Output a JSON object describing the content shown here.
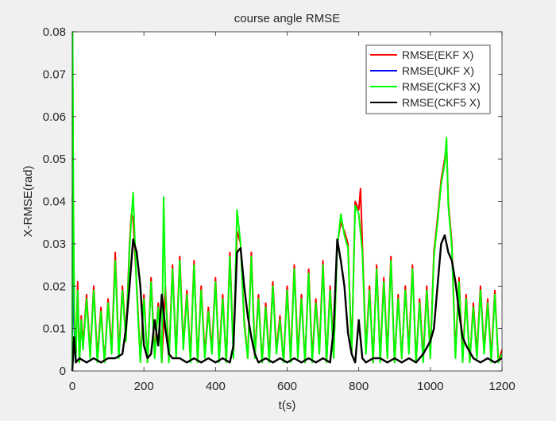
{
  "chart_data": {
    "type": "line",
    "title": "course angle RMSE",
    "xlabel": "t(s)",
    "ylabel": "X-RMSE(rad)",
    "xlim": [
      0,
      1200
    ],
    "ylim": [
      0,
      0.08
    ],
    "xticks": [
      0,
      200,
      400,
      600,
      800,
      1000,
      1200
    ],
    "yticks": [
      0,
      0.01,
      0.02,
      0.03,
      0.04,
      0.05,
      0.06,
      0.07,
      0.08
    ],
    "xtick_labels": [
      "0",
      "200",
      "400",
      "600",
      "800",
      "1000",
      "1200"
    ],
    "ytick_labels": [
      "0",
      "0.01",
      "0.02",
      "0.03",
      "0.04",
      "0.05",
      "0.06",
      "0.07",
      "0.08"
    ],
    "grid": false,
    "legend_position": "top-right",
    "series": [
      {
        "name": "RMSE(EKF X)",
        "color": "#ff0000",
        "x": [
          0,
          2,
          6,
          10,
          15,
          20,
          25,
          30,
          40,
          50,
          60,
          70,
          80,
          90,
          100,
          110,
          120,
          130,
          140,
          150,
          160,
          165,
          170,
          180,
          190,
          200,
          210,
          220,
          230,
          240,
          250,
          260,
          270,
          280,
          290,
          300,
          310,
          320,
          330,
          340,
          350,
          360,
          370,
          380,
          390,
          400,
          410,
          420,
          430,
          440,
          450,
          460,
          470,
          480,
          490,
          500,
          510,
          520,
          530,
          540,
          550,
          560,
          570,
          580,
          590,
          600,
          610,
          620,
          630,
          640,
          650,
          660,
          670,
          680,
          690,
          700,
          710,
          720,
          730,
          740,
          750,
          760,
          770,
          780,
          790,
          800,
          805,
          810,
          820,
          830,
          840,
          850,
          860,
          870,
          880,
          890,
          900,
          910,
          920,
          930,
          940,
          950,
          960,
          970,
          980,
          990,
          1000,
          1010,
          1020,
          1030,
          1040,
          1045,
          1050,
          1060,
          1070,
          1080,
          1090,
          1100,
          1110,
          1120,
          1130,
          1140,
          1150,
          1160,
          1170,
          1180,
          1190,
          1200
        ],
        "y": [
          0.04,
          0.043,
          0.012,
          0.004,
          0.021,
          0.002,
          0.013,
          0.006,
          0.018,
          0.004,
          0.02,
          0.003,
          0.015,
          0.002,
          0.017,
          0.005,
          0.028,
          0.004,
          0.02,
          0.008,
          0.03,
          0.037,
          0.036,
          0.02,
          0.003,
          0.018,
          0.002,
          0.022,
          0.004,
          0.016,
          0.002,
          0.02,
          0.003,
          0.025,
          0.004,
          0.027,
          0.006,
          0.019,
          0.003,
          0.026,
          0.002,
          0.02,
          0.004,
          0.015,
          0.005,
          0.022,
          0.003,
          0.018,
          0.002,
          0.028,
          0.004,
          0.033,
          0.03,
          0.012,
          0.003,
          0.028,
          0.004,
          0.018,
          0.002,
          0.016,
          0.003,
          0.021,
          0.005,
          0.013,
          0.002,
          0.02,
          0.003,
          0.025,
          0.004,
          0.018,
          0.002,
          0.024,
          0.003,
          0.017,
          0.005,
          0.026,
          0.002,
          0.02,
          0.004,
          0.03,
          0.035,
          0.033,
          0.03,
          0.004,
          0.04,
          0.038,
          0.043,
          0.03,
          0.005,
          0.02,
          0.002,
          0.025,
          0.003,
          0.022,
          0.004,
          0.027,
          0.002,
          0.018,
          0.003,
          0.02,
          0.005,
          0.025,
          0.002,
          0.017,
          0.003,
          0.02,
          0.004,
          0.028,
          0.036,
          0.045,
          0.05,
          0.054,
          0.04,
          0.03,
          0.004,
          0.022,
          0.003,
          0.018,
          0.002,
          0.016,
          0.004,
          0.02,
          0.005,
          0.017,
          0.003,
          0.019,
          0.002,
          0.005
        ]
      },
      {
        "name": "RMSE(UKF X)",
        "color": "#0000ff",
        "x": [
          0,
          1,
          2,
          5,
          10
        ],
        "y": [
          0.0,
          0.02,
          0.041,
          0.012,
          0.002
        ]
      },
      {
        "name": "RMSE(CKF3 X)",
        "color": "#00ff00",
        "x": [
          0,
          1,
          3,
          6,
          10,
          15,
          20,
          25,
          30,
          40,
          50,
          60,
          70,
          80,
          90,
          100,
          110,
          120,
          130,
          140,
          150,
          160,
          165,
          170,
          180,
          190,
          200,
          210,
          220,
          230,
          240,
          250,
          255,
          260,
          270,
          280,
          290,
          300,
          310,
          320,
          330,
          340,
          350,
          360,
          370,
          380,
          390,
          400,
          410,
          420,
          430,
          440,
          450,
          460,
          470,
          480,
          490,
          500,
          510,
          520,
          530,
          540,
          550,
          560,
          570,
          580,
          590,
          600,
          610,
          620,
          630,
          640,
          650,
          660,
          670,
          680,
          690,
          700,
          710,
          720,
          730,
          740,
          750,
          760,
          770,
          780,
          790,
          800,
          810,
          820,
          830,
          840,
          850,
          860,
          870,
          880,
          890,
          900,
          910,
          920,
          930,
          940,
          950,
          960,
          970,
          980,
          990,
          1000,
          1010,
          1020,
          1030,
          1040,
          1045,
          1050,
          1060,
          1070,
          1080,
          1090,
          1100,
          1110,
          1120,
          1130,
          1140,
          1150,
          1160,
          1170,
          1180,
          1190,
          1200
        ],
        "y": [
          0.0,
          0.08,
          0.04,
          0.012,
          0.003,
          0.019,
          0.002,
          0.012,
          0.005,
          0.017,
          0.003,
          0.019,
          0.002,
          0.014,
          0.002,
          0.016,
          0.004,
          0.026,
          0.003,
          0.019,
          0.007,
          0.029,
          0.036,
          0.042,
          0.019,
          0.002,
          0.017,
          0.002,
          0.021,
          0.003,
          0.015,
          0.002,
          0.041,
          0.019,
          0.002,
          0.024,
          0.003,
          0.026,
          0.005,
          0.018,
          0.002,
          0.025,
          0.002,
          0.019,
          0.003,
          0.014,
          0.004,
          0.021,
          0.002,
          0.017,
          0.002,
          0.027,
          0.003,
          0.038,
          0.03,
          0.011,
          0.003,
          0.027,
          0.003,
          0.017,
          0.002,
          0.015,
          0.002,
          0.02,
          0.004,
          0.012,
          0.002,
          0.019,
          0.002,
          0.024,
          0.003,
          0.017,
          0.002,
          0.023,
          0.002,
          0.016,
          0.004,
          0.025,
          0.002,
          0.019,
          0.003,
          0.029,
          0.037,
          0.032,
          0.029,
          0.004,
          0.039,
          0.037,
          0.028,
          0.004,
          0.019,
          0.002,
          0.024,
          0.002,
          0.021,
          0.003,
          0.026,
          0.002,
          0.017,
          0.003,
          0.019,
          0.004,
          0.024,
          0.002,
          0.016,
          0.002,
          0.019,
          0.003,
          0.027,
          0.035,
          0.044,
          0.049,
          0.055,
          0.039,
          0.029,
          0.003,
          0.021,
          0.002,
          0.017,
          0.002,
          0.015,
          0.003,
          0.019,
          0.004,
          0.016,
          0.002,
          0.018,
          0.002,
          0.004
        ]
      },
      {
        "name": "RMSE(CKF5 X)",
        "color": "#000000",
        "x": [
          0,
          5,
          10,
          20,
          40,
          60,
          80,
          100,
          120,
          140,
          150,
          160,
          170,
          180,
          190,
          200,
          210,
          220,
          230,
          240,
          250,
          260,
          270,
          280,
          300,
          320,
          340,
          360,
          380,
          400,
          420,
          440,
          450,
          460,
          470,
          480,
          490,
          500,
          510,
          520,
          540,
          560,
          580,
          600,
          620,
          640,
          660,
          680,
          700,
          720,
          730,
          740,
          750,
          760,
          770,
          780,
          790,
          800,
          810,
          820,
          840,
          860,
          880,
          900,
          920,
          940,
          960,
          980,
          1000,
          1010,
          1020,
          1030,
          1040,
          1050,
          1060,
          1070,
          1080,
          1090,
          1100,
          1120,
          1140,
          1160,
          1180,
          1200
        ],
        "y": [
          0.0,
          0.008,
          0.002,
          0.003,
          0.002,
          0.003,
          0.002,
          0.003,
          0.003,
          0.004,
          0.01,
          0.02,
          0.031,
          0.028,
          0.02,
          0.006,
          0.003,
          0.004,
          0.012,
          0.006,
          0.018,
          0.01,
          0.004,
          0.003,
          0.003,
          0.002,
          0.003,
          0.002,
          0.003,
          0.002,
          0.003,
          0.002,
          0.006,
          0.028,
          0.029,
          0.02,
          0.013,
          0.008,
          0.004,
          0.002,
          0.003,
          0.002,
          0.003,
          0.002,
          0.003,
          0.002,
          0.003,
          0.002,
          0.003,
          0.002,
          0.01,
          0.031,
          0.026,
          0.02,
          0.009,
          0.004,
          0.002,
          0.012,
          0.003,
          0.002,
          0.003,
          0.003,
          0.002,
          0.003,
          0.002,
          0.003,
          0.002,
          0.004,
          0.007,
          0.01,
          0.02,
          0.03,
          0.032,
          0.028,
          0.026,
          0.021,
          0.014,
          0.008,
          0.006,
          0.003,
          0.002,
          0.003,
          0.002,
          0.003
        ]
      }
    ]
  }
}
